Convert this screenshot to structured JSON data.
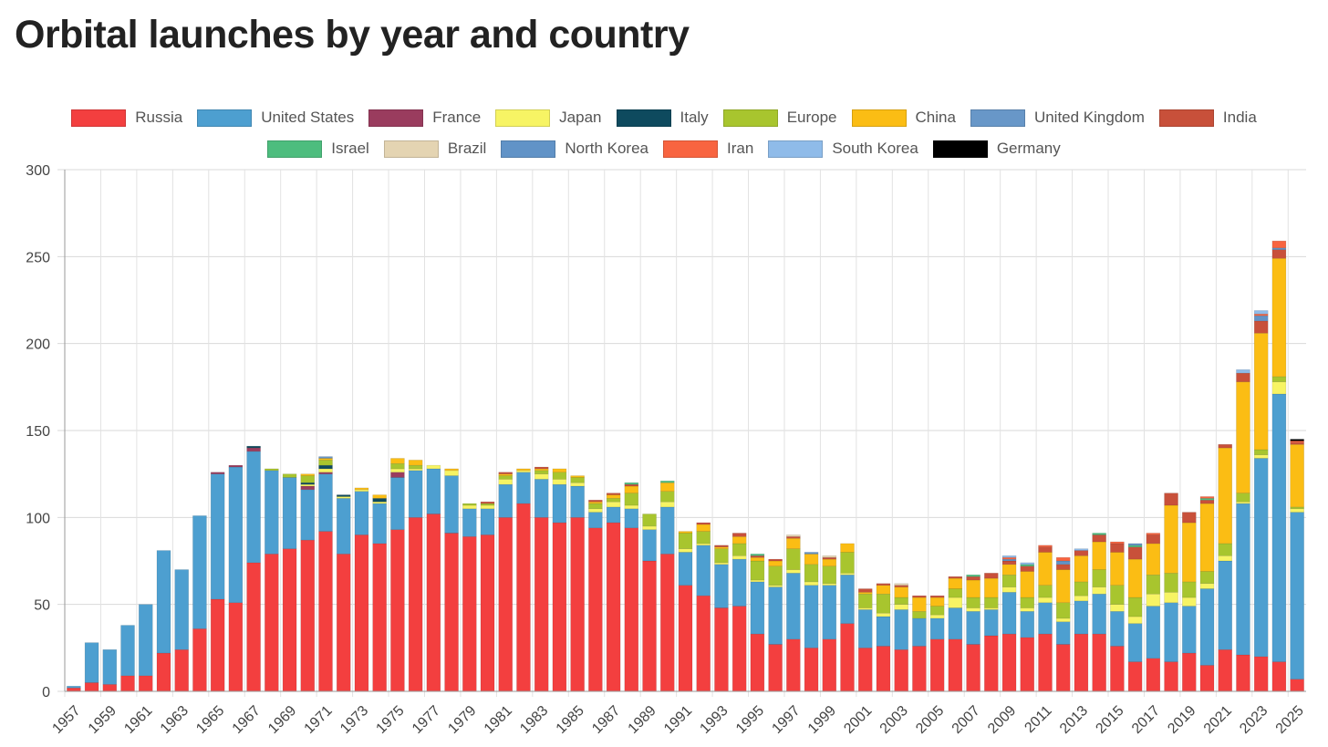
{
  "title": "Orbital launches by year and country",
  "chart_data": {
    "type": "bar",
    "stacked": true,
    "title": "Orbital launches by year and country",
    "xlabel": "",
    "ylabel": "",
    "ylim": [
      0,
      300
    ],
    "yticks": [
      0,
      50,
      100,
      150,
      200,
      250,
      300
    ],
    "grid": true,
    "legend_position": "top",
    "categories": [
      "1957",
      "1958",
      "1959",
      "1960",
      "1961",
      "1962",
      "1963",
      "1964",
      "1965",
      "1966",
      "1967",
      "1968",
      "1969",
      "1970",
      "1971",
      "1972",
      "1973",
      "1974",
      "1975",
      "1976",
      "1977",
      "1978",
      "1979",
      "1980",
      "1981",
      "1982",
      "1983",
      "1984",
      "1985",
      "1986",
      "1987",
      "1988",
      "1989",
      "1990",
      "1991",
      "1992",
      "1993",
      "1994",
      "1995",
      "1996",
      "1997",
      "1998",
      "1999",
      "2000",
      "2001",
      "2002",
      "2003",
      "2004",
      "2005",
      "2006",
      "2007",
      "2008",
      "2009",
      "2010",
      "2011",
      "2012",
      "2013",
      "2014",
      "2015",
      "2016",
      "2017",
      "2018",
      "2019",
      "2020",
      "2021",
      "2022",
      "2023",
      "2024",
      "2025"
    ],
    "xtick_labels": [
      "1957",
      "1959",
      "1961",
      "1963",
      "1965",
      "1967",
      "1969",
      "1971",
      "1973",
      "1975",
      "1977",
      "1979",
      "1981",
      "1983",
      "1985",
      "1987",
      "1989",
      "1991",
      "1993",
      "1995",
      "1997",
      "1999",
      "2001",
      "2003",
      "2005",
      "2007",
      "2009",
      "2011",
      "2013",
      "2015",
      "2017",
      "2019",
      "2021",
      "2023",
      "2025"
    ],
    "series": [
      {
        "name": "Russia",
        "color": "#f33f3f",
        "values": [
          2,
          5,
          4,
          9,
          9,
          22,
          24,
          36,
          53,
          51,
          74,
          79,
          82,
          87,
          92,
          79,
          90,
          85,
          93,
          100,
          102,
          91,
          89,
          90,
          100,
          108,
          100,
          97,
          100,
          94,
          97,
          94,
          75,
          79,
          61,
          55,
          48,
          49,
          33,
          27,
          30,
          25,
          30,
          39,
          25,
          26,
          24,
          26,
          30,
          30,
          27,
          32,
          33,
          31,
          33,
          27,
          33,
          33,
          26,
          17,
          19,
          17,
          22,
          15,
          24,
          21,
          20,
          17,
          7
        ]
      },
      {
        "name": "United States",
        "color": "#4d9fd0",
        "values": [
          1,
          23,
          20,
          29,
          41,
          59,
          46,
          65,
          72,
          78,
          64,
          48,
          41,
          29,
          33,
          32,
          25,
          23,
          30,
          27,
          26,
          33,
          16,
          15,
          19,
          18,
          22,
          22,
          18,
          9,
          9,
          11,
          18,
          27,
          19,
          29,
          25,
          27,
          30,
          33,
          38,
          36,
          31,
          28,
          22,
          17,
          23,
          16,
          12,
          18,
          19,
          15,
          24,
          15,
          18,
          13,
          19,
          23,
          20,
          22,
          30,
          34,
          27,
          44,
          51,
          87,
          114,
          154,
          96
        ]
      },
      {
        "name": "France",
        "color": "#9a3c5e",
        "values": [
          0,
          0,
          0,
          0,
          0,
          0,
          0,
          0,
          1,
          1,
          2,
          0,
          0,
          2,
          1,
          0,
          0,
          0,
          3,
          0,
          0,
          0,
          0,
          0,
          0,
          0,
          0,
          0,
          0,
          0,
          0,
          0,
          0,
          0,
          0,
          0,
          0,
          0,
          0,
          0,
          0,
          0,
          0,
          0,
          0,
          0,
          0,
          0,
          0,
          0,
          0,
          0,
          0,
          0,
          0,
          0,
          0,
          0,
          0,
          0,
          0,
          0,
          0,
          0,
          0,
          0,
          0,
          0,
          0
        ]
      },
      {
        "name": "Japan",
        "color": "#f7f464",
        "values": [
          0,
          0,
          0,
          0,
          0,
          0,
          0,
          0,
          0,
          0,
          0,
          0,
          0,
          1,
          2,
          1,
          1,
          1,
          2,
          1,
          2,
          3,
          2,
          2,
          3,
          1,
          3,
          3,
          2,
          2,
          3,
          2,
          2,
          3,
          2,
          1,
          1,
          2,
          1,
          1,
          2,
          2,
          1,
          1,
          1,
          2,
          3,
          0,
          2,
          6,
          2,
          1,
          3,
          2,
          3,
          2,
          3,
          4,
          4,
          4,
          7,
          6,
          5,
          3,
          3,
          1,
          2,
          7,
          2
        ]
      },
      {
        "name": "Italy",
        "color": "#0e4a5e",
        "values": [
          0,
          0,
          0,
          0,
          0,
          0,
          0,
          0,
          0,
          0,
          1,
          0,
          0,
          1,
          2,
          1,
          0,
          2,
          0,
          0,
          0,
          0,
          0,
          0,
          0,
          0,
          0,
          0,
          0,
          0,
          0,
          0,
          0,
          0,
          0,
          0,
          0,
          0,
          0,
          0,
          0,
          0,
          0,
          0,
          0,
          0,
          0,
          0,
          0,
          0,
          0,
          0,
          0,
          0,
          0,
          0,
          0,
          0,
          0,
          0,
          0,
          0,
          0,
          0,
          0,
          0,
          0,
          0,
          0
        ]
      },
      {
        "name": "Europe",
        "color": "#a8c52e",
        "values": [
          0,
          0,
          0,
          0,
          0,
          0,
          0,
          0,
          0,
          0,
          0,
          1,
          2,
          4,
          3,
          0,
          0,
          0,
          3,
          2,
          0,
          0,
          1,
          1,
          2,
          0,
          2,
          4,
          3,
          3,
          2,
          7,
          7,
          6,
          9,
          7,
          8,
          7,
          11,
          11,
          12,
          10,
          10,
          12,
          8,
          11,
          4,
          4,
          5,
          5,
          6,
          6,
          7,
          6,
          7,
          9,
          8,
          10,
          11,
          11,
          11,
          11,
          9,
          7,
          7,
          5,
          3,
          3,
          1
        ]
      },
      {
        "name": "China",
        "color": "#fbbd14",
        "values": [
          0,
          0,
          0,
          0,
          0,
          0,
          0,
          0,
          0,
          0,
          0,
          0,
          0,
          1,
          1,
          0,
          1,
          2,
          3,
          3,
          0,
          1,
          0,
          0,
          1,
          1,
          1,
          2,
          1,
          1,
          2,
          4,
          0,
          5,
          1,
          4,
          1,
          4,
          2,
          3,
          6,
          6,
          4,
          5,
          1,
          5,
          6,
          8,
          5,
          6,
          10,
          11,
          6,
          15,
          19,
          19,
          15,
          16,
          19,
          22,
          18,
          39,
          34,
          39,
          55,
          64,
          67,
          68,
          36
        ]
      },
      {
        "name": "United Kingdom",
        "color": "#6897c8",
        "values": [
          0,
          0,
          0,
          0,
          0,
          0,
          0,
          0,
          0,
          0,
          0,
          0,
          0,
          0,
          1,
          0,
          0,
          0,
          0,
          0,
          0,
          0,
          0,
          0,
          0,
          0,
          0,
          0,
          0,
          0,
          0,
          0,
          0,
          0,
          0,
          0,
          0,
          0,
          0,
          0,
          0,
          0,
          0,
          0,
          0,
          0,
          0,
          0,
          0,
          0,
          0,
          0,
          0,
          0,
          0,
          0,
          0,
          0,
          0,
          0,
          0,
          0,
          0,
          0,
          0,
          0,
          0,
          0,
          0
        ]
      },
      {
        "name": "India",
        "color": "#c8503a",
        "values": [
          0,
          0,
          0,
          0,
          0,
          0,
          0,
          0,
          0,
          0,
          0,
          0,
          0,
          0,
          0,
          0,
          0,
          0,
          0,
          0,
          0,
          0,
          0,
          1,
          1,
          0,
          1,
          0,
          0,
          1,
          1,
          1,
          0,
          0,
          0,
          1,
          1,
          2,
          1,
          1,
          1,
          0,
          1,
          0,
          2,
          1,
          1,
          1,
          1,
          1,
          2,
          3,
          2,
          3,
          3,
          3,
          3,
          4,
          5,
          7,
          5,
          7,
          6,
          2,
          2,
          5,
          7,
          5,
          1
        ]
      },
      {
        "name": "Israel",
        "color": "#4dbd7e",
        "values": [
          0,
          0,
          0,
          0,
          0,
          0,
          0,
          0,
          0,
          0,
          0,
          0,
          0,
          0,
          0,
          0,
          0,
          0,
          0,
          0,
          0,
          0,
          0,
          0,
          0,
          0,
          0,
          0,
          0,
          0,
          0,
          1,
          0,
          1,
          0,
          0,
          0,
          0,
          1,
          0,
          0,
          0,
          0,
          0,
          0,
          0,
          0,
          0,
          0,
          0,
          1,
          0,
          0,
          1,
          0,
          0,
          0,
          1,
          0,
          1,
          0,
          0,
          0,
          1,
          0,
          0,
          0,
          0,
          0
        ]
      },
      {
        "name": "Brazil",
        "color": "#e4d4b2",
        "values": [
          0,
          0,
          0,
          0,
          0,
          0,
          0,
          0,
          0,
          0,
          0,
          0,
          0,
          0,
          0,
          0,
          0,
          0,
          0,
          0,
          0,
          0,
          0,
          0,
          0,
          0,
          0,
          0,
          0,
          0,
          0,
          0,
          0,
          0,
          0,
          0,
          0,
          0,
          0,
          0,
          1,
          0,
          1,
          0,
          0,
          0,
          1,
          0,
          0,
          0,
          0,
          0,
          0,
          0,
          0,
          0,
          0,
          0,
          0,
          0,
          0,
          0,
          0,
          0,
          0,
          0,
          0,
          0,
          0
        ]
      },
      {
        "name": "North Korea",
        "color": "#6193c7",
        "values": [
          0,
          0,
          0,
          0,
          0,
          0,
          0,
          0,
          0,
          0,
          0,
          0,
          0,
          0,
          0,
          0,
          0,
          0,
          0,
          0,
          0,
          0,
          0,
          0,
          0,
          0,
          0,
          0,
          0,
          0,
          0,
          0,
          0,
          0,
          0,
          0,
          0,
          0,
          0,
          0,
          0,
          1,
          0,
          0,
          0,
          0,
          0,
          0,
          0,
          0,
          0,
          0,
          1,
          0,
          0,
          2,
          0,
          0,
          0,
          1,
          0,
          0,
          0,
          0,
          0,
          0,
          3,
          1,
          0
        ]
      },
      {
        "name": "Iran",
        "color": "#f86440",
        "values": [
          0,
          0,
          0,
          0,
          0,
          0,
          0,
          0,
          0,
          0,
          0,
          0,
          0,
          0,
          0,
          0,
          0,
          0,
          0,
          0,
          0,
          0,
          0,
          0,
          0,
          0,
          0,
          0,
          0,
          0,
          0,
          0,
          0,
          0,
          0,
          0,
          0,
          0,
          0,
          0,
          0,
          0,
          0,
          0,
          0,
          0,
          0,
          0,
          0,
          0,
          0,
          0,
          1,
          0,
          1,
          2,
          0,
          0,
          1,
          0,
          1,
          0,
          0,
          1,
          0,
          0,
          1,
          4,
          1
        ]
      },
      {
        "name": "South Korea",
        "color": "#8fbbe9",
        "values": [
          0,
          0,
          0,
          0,
          0,
          0,
          0,
          0,
          0,
          0,
          0,
          0,
          0,
          0,
          0,
          0,
          0,
          0,
          0,
          0,
          0,
          0,
          0,
          0,
          0,
          0,
          0,
          0,
          0,
          0,
          0,
          0,
          0,
          0,
          0,
          0,
          0,
          0,
          0,
          0,
          0,
          0,
          0,
          0,
          0,
          0,
          0,
          0,
          0,
          0,
          0,
          0,
          1,
          1,
          0,
          0,
          1,
          0,
          0,
          0,
          0,
          0,
          0,
          0,
          0,
          2,
          2,
          0,
          0
        ]
      },
      {
        "name": "Germany",
        "color": "#000000",
        "values": [
          0,
          0,
          0,
          0,
          0,
          0,
          0,
          0,
          0,
          0,
          0,
          0,
          0,
          0,
          0,
          0,
          0,
          0,
          0,
          0,
          0,
          0,
          0,
          0,
          0,
          0,
          0,
          0,
          0,
          0,
          0,
          0,
          0,
          0,
          0,
          0,
          0,
          0,
          0,
          0,
          0,
          0,
          0,
          0,
          0,
          0,
          0,
          0,
          0,
          0,
          0,
          0,
          0,
          0,
          0,
          0,
          0,
          0,
          0,
          0,
          0,
          0,
          0,
          0,
          0,
          0,
          0,
          0,
          1
        ]
      }
    ]
  }
}
